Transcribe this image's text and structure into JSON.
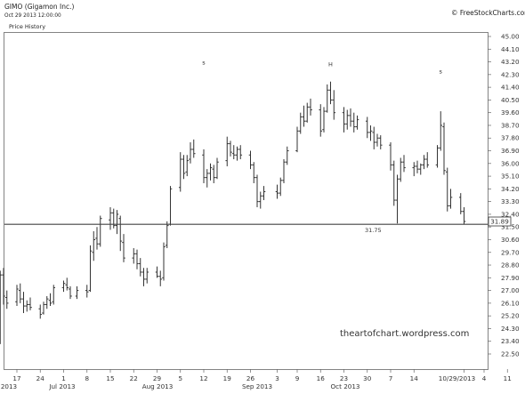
{
  "header": {
    "symbol_title": "GIMO (Gigamon Inc.)",
    "date_line": "Oct 29 2013 12:00:00",
    "panel_label": "Price History",
    "copyright": "© FreeStockCharts.com"
  },
  "watermark": "theartofchart.wordpress.com",
  "price_tag": "31.89",
  "support_label": "31.75",
  "annotations": [
    {
      "text": "s",
      "date": "2013-08-12",
      "price": 43.0
    },
    {
      "text": "H",
      "date": "2013-09-19",
      "price": 42.9
    },
    {
      "text": "s",
      "date": "2013-10-22",
      "price": 42.4
    }
  ],
  "colors": {
    "bar": "#333333",
    "support_line": "#444444",
    "frame": "#666666"
  },
  "chart_data": {
    "type": "ohlc",
    "title": "GIMO (Gigamon Inc.)",
    "y_ticks": [
      "45.00",
      "44.10",
      "43.20",
      "42.30",
      "41.40",
      "40.50",
      "39.60",
      "38.70",
      "37.80",
      "36.90",
      "36.00",
      "35.10",
      "34.20",
      "33.30",
      "32.40",
      "31.50",
      "30.60",
      "29.70",
      "28.80",
      "27.90",
      "27.00",
      "26.10",
      "25.20",
      "24.30",
      "23.40",
      "22.50"
    ],
    "ylim": [
      22.0,
      45.5
    ],
    "x_tick_labels": [
      "17",
      "24",
      "1",
      "8",
      "15",
      "22",
      "29",
      "5",
      "12",
      "19",
      "26",
      "3",
      "9",
      "16",
      "23",
      "30",
      "7",
      "14",
      "10/29/2013",
      "4",
      "11"
    ],
    "month_labels": [
      "2013",
      "Jul 2013",
      "Aug 2013",
      "Sep 2013",
      "Oct 2013"
    ],
    "support_level": 31.75,
    "last_price": 31.89,
    "bars": [
      {
        "date": "2013-06-12",
        "open": 24.0,
        "high": 28.4,
        "low": 23.2,
        "close": 28.1
      },
      {
        "date": "2013-06-13",
        "open": 28.1,
        "high": 28.6,
        "low": 26.0,
        "close": 26.6
      },
      {
        "date": "2013-06-14",
        "open": 26.5,
        "high": 27.0,
        "low": 25.7,
        "close": 26.1
      },
      {
        "date": "2013-06-17",
        "open": 26.2,
        "high": 27.4,
        "low": 25.9,
        "close": 27.1
      },
      {
        "date": "2013-06-18",
        "open": 27.0,
        "high": 27.5,
        "low": 26.1,
        "close": 26.4
      },
      {
        "date": "2013-06-19",
        "open": 26.4,
        "high": 26.9,
        "low": 25.4,
        "close": 25.9
      },
      {
        "date": "2013-06-20",
        "open": 25.9,
        "high": 26.3,
        "low": 25.5,
        "close": 26.0
      },
      {
        "date": "2013-06-21",
        "open": 26.0,
        "high": 26.5,
        "low": 25.6,
        "close": 25.8
      },
      {
        "date": "2013-06-24",
        "open": 25.7,
        "high": 26.0,
        "low": 25.0,
        "close": 25.3
      },
      {
        "date": "2013-06-25",
        "open": 25.4,
        "high": 26.2,
        "low": 25.3,
        "close": 26.0
      },
      {
        "date": "2013-06-26",
        "open": 26.0,
        "high": 26.6,
        "low": 25.7,
        "close": 26.4
      },
      {
        "date": "2013-06-27",
        "open": 26.3,
        "high": 26.8,
        "low": 25.9,
        "close": 26.1
      },
      {
        "date": "2013-06-28",
        "open": 26.2,
        "high": 27.4,
        "low": 26.0,
        "close": 27.2
      },
      {
        "date": "2013-07-01",
        "open": 27.2,
        "high": 27.7,
        "low": 26.9,
        "close": 27.5
      },
      {
        "date": "2013-07-02",
        "open": 27.4,
        "high": 27.9,
        "low": 27.0,
        "close": 27.2
      },
      {
        "date": "2013-07-03",
        "open": 27.1,
        "high": 27.3,
        "low": 26.4,
        "close": 26.6
      },
      {
        "date": "2013-07-05",
        "open": 26.6,
        "high": 27.3,
        "low": 26.4,
        "close": 27.0
      },
      {
        "date": "2013-07-08",
        "open": 27.0,
        "high": 27.4,
        "low": 26.5,
        "close": 26.9
      },
      {
        "date": "2013-07-09",
        "open": 27.0,
        "high": 30.2,
        "low": 26.9,
        "close": 29.8
      },
      {
        "date": "2013-07-10",
        "open": 29.7,
        "high": 31.2,
        "low": 29.1,
        "close": 30.6
      },
      {
        "date": "2013-07-11",
        "open": 30.7,
        "high": 31.5,
        "low": 29.9,
        "close": 30.3
      },
      {
        "date": "2013-07-12",
        "open": 30.3,
        "high": 32.3,
        "low": 30.1,
        "close": 32.1
      },
      {
        "date": "2013-07-15",
        "open": 32.0,
        "high": 32.9,
        "low": 31.3,
        "close": 32.5
      },
      {
        "date": "2013-07-16",
        "open": 32.5,
        "high": 32.8,
        "low": 31.4,
        "close": 31.6
      },
      {
        "date": "2013-07-17",
        "open": 31.6,
        "high": 32.7,
        "low": 31.0,
        "close": 32.4
      },
      {
        "date": "2013-07-18",
        "open": 32.1,
        "high": 32.3,
        "low": 29.8,
        "close": 30.5
      },
      {
        "date": "2013-07-19",
        "open": 30.4,
        "high": 31.0,
        "low": 29.0,
        "close": 29.3
      },
      {
        "date": "2013-07-22",
        "open": 29.3,
        "high": 30.0,
        "low": 28.9,
        "close": 29.6
      },
      {
        "date": "2013-07-23",
        "open": 29.6,
        "high": 29.9,
        "low": 28.5,
        "close": 28.9
      },
      {
        "date": "2013-07-24",
        "open": 28.9,
        "high": 29.3,
        "low": 28.0,
        "close": 28.3
      },
      {
        "date": "2013-07-25",
        "open": 28.3,
        "high": 28.6,
        "low": 27.3,
        "close": 27.8
      },
      {
        "date": "2013-07-26",
        "open": 27.8,
        "high": 28.6,
        "low": 27.5,
        "close": 28.3
      },
      {
        "date": "2013-07-29",
        "open": 28.3,
        "high": 28.7,
        "low": 27.9,
        "close": 28.0
      },
      {
        "date": "2013-07-30",
        "open": 28.0,
        "high": 28.4,
        "low": 27.3,
        "close": 27.8
      },
      {
        "date": "2013-07-31",
        "open": 27.9,
        "high": 30.4,
        "low": 27.7,
        "close": 30.1
      },
      {
        "date": "2013-08-01",
        "open": 30.2,
        "high": 31.9,
        "low": 30.0,
        "close": 31.6
      },
      {
        "date": "2013-08-02",
        "open": 31.7,
        "high": 34.4,
        "low": 31.6,
        "close": 34.2
      },
      {
        "date": "2013-08-05",
        "open": 34.3,
        "high": 36.8,
        "low": 34.0,
        "close": 36.3
      },
      {
        "date": "2013-08-06",
        "open": 36.3,
        "high": 36.6,
        "low": 34.9,
        "close": 35.3
      },
      {
        "date": "2013-08-07",
        "open": 35.4,
        "high": 36.6,
        "low": 35.1,
        "close": 36.2
      },
      {
        "date": "2013-08-08",
        "open": 36.3,
        "high": 37.5,
        "low": 36.0,
        "close": 37.0
      },
      {
        "date": "2013-08-09",
        "open": 37.0,
        "high": 37.7,
        "low": 36.4,
        "close": 36.7
      },
      {
        "date": "2013-08-12",
        "open": 36.6,
        "high": 37.0,
        "low": 34.6,
        "close": 35.0
      },
      {
        "date": "2013-08-13",
        "open": 35.0,
        "high": 35.6,
        "low": 34.3,
        "close": 35.3
      },
      {
        "date": "2013-08-14",
        "open": 35.3,
        "high": 36.0,
        "low": 34.8,
        "close": 35.7
      },
      {
        "date": "2013-08-15",
        "open": 35.6,
        "high": 35.9,
        "low": 34.6,
        "close": 35.0
      },
      {
        "date": "2013-08-16",
        "open": 35.0,
        "high": 36.4,
        "low": 34.9,
        "close": 36.1
      },
      {
        "date": "2013-08-19",
        "open": 36.2,
        "high": 37.9,
        "low": 35.8,
        "close": 37.4
      },
      {
        "date": "2013-08-20",
        "open": 37.4,
        "high": 37.6,
        "low": 36.5,
        "close": 36.8
      },
      {
        "date": "2013-08-21",
        "open": 36.7,
        "high": 37.3,
        "low": 36.3,
        "close": 36.6
      },
      {
        "date": "2013-08-22",
        "open": 36.6,
        "high": 37.2,
        "low": 36.2,
        "close": 37.0
      },
      {
        "date": "2013-08-23",
        "open": 37.0,
        "high": 37.3,
        "low": 36.3,
        "close": 36.6
      },
      {
        "date": "2013-08-26",
        "open": 36.6,
        "high": 36.9,
        "low": 35.6,
        "close": 35.9
      },
      {
        "date": "2013-08-27",
        "open": 35.9,
        "high": 36.1,
        "low": 34.6,
        "close": 35.0
      },
      {
        "date": "2013-08-28",
        "open": 35.0,
        "high": 35.2,
        "low": 32.9,
        "close": 33.3
      },
      {
        "date": "2013-08-29",
        "open": 33.3,
        "high": 34.0,
        "low": 32.8,
        "close": 33.7
      },
      {
        "date": "2013-08-30",
        "open": 33.7,
        "high": 34.4,
        "low": 33.4,
        "close": 34.0
      },
      {
        "date": "2013-09-03",
        "open": 34.0,
        "high": 34.5,
        "low": 33.5,
        "close": 33.9
      },
      {
        "date": "2013-09-04",
        "open": 33.9,
        "high": 35.0,
        "low": 33.7,
        "close": 34.8
      },
      {
        "date": "2013-09-05",
        "open": 34.8,
        "high": 36.3,
        "low": 34.6,
        "close": 36.1
      },
      {
        "date": "2013-09-06",
        "open": 36.1,
        "high": 37.2,
        "low": 35.9,
        "close": 36.9
      },
      {
        "date": "2013-09-09",
        "open": 36.9,
        "high": 38.6,
        "low": 36.8,
        "close": 38.3
      },
      {
        "date": "2013-09-10",
        "open": 38.3,
        "high": 39.6,
        "low": 38.1,
        "close": 39.3
      },
      {
        "date": "2013-09-11",
        "open": 39.3,
        "high": 40.1,
        "low": 38.6,
        "close": 39.0
      },
      {
        "date": "2013-09-12",
        "open": 39.0,
        "high": 40.3,
        "low": 38.9,
        "close": 40.0
      },
      {
        "date": "2013-09-13",
        "open": 40.0,
        "high": 40.6,
        "low": 39.4,
        "close": 39.8
      },
      {
        "date": "2013-09-16",
        "open": 39.8,
        "high": 40.2,
        "low": 37.9,
        "close": 38.3
      },
      {
        "date": "2013-09-17",
        "open": 38.4,
        "high": 40.0,
        "low": 38.2,
        "close": 39.7
      },
      {
        "date": "2013-09-18",
        "open": 39.7,
        "high": 41.6,
        "low": 39.6,
        "close": 41.2
      },
      {
        "date": "2013-09-19",
        "open": 41.2,
        "high": 41.8,
        "low": 40.2,
        "close": 40.5
      },
      {
        "date": "2013-09-20",
        "open": 40.5,
        "high": 41.2,
        "low": 39.1,
        "close": 39.6
      },
      {
        "date": "2013-09-23",
        "open": 39.6,
        "high": 40.0,
        "low": 38.2,
        "close": 38.8
      },
      {
        "date": "2013-09-24",
        "open": 38.8,
        "high": 39.8,
        "low": 38.4,
        "close": 39.4
      },
      {
        "date": "2013-09-25",
        "open": 39.4,
        "high": 39.9,
        "low": 38.6,
        "close": 39.0
      },
      {
        "date": "2013-09-26",
        "open": 39.0,
        "high": 39.6,
        "low": 38.2,
        "close": 38.6
      },
      {
        "date": "2013-09-27",
        "open": 38.6,
        "high": 39.4,
        "low": 38.4,
        "close": 39.1
      },
      {
        "date": "2013-09-30",
        "open": 39.0,
        "high": 39.3,
        "low": 37.8,
        "close": 38.2
      },
      {
        "date": "2013-10-01",
        "open": 38.2,
        "high": 38.7,
        "low": 37.6,
        "close": 38.3
      },
      {
        "date": "2013-10-02",
        "open": 38.2,
        "high": 38.6,
        "low": 37.0,
        "close": 37.5
      },
      {
        "date": "2013-10-03",
        "open": 37.5,
        "high": 38.1,
        "low": 37.2,
        "close": 37.8
      },
      {
        "date": "2013-10-04",
        "open": 37.8,
        "high": 38.0,
        "low": 37.0,
        "close": 37.3
      },
      {
        "date": "2013-10-07",
        "open": 37.3,
        "high": 37.5,
        "low": 35.5,
        "close": 35.9
      },
      {
        "date": "2013-10-08",
        "open": 35.9,
        "high": 36.2,
        "low": 33.0,
        "close": 33.4
      },
      {
        "date": "2013-10-09",
        "open": 33.4,
        "high": 35.2,
        "low": 31.75,
        "close": 34.9
      },
      {
        "date": "2013-10-10",
        "open": 34.9,
        "high": 36.4,
        "low": 34.7,
        "close": 36.1
      },
      {
        "date": "2013-10-11",
        "open": 36.1,
        "high": 36.6,
        "low": 35.4,
        "close": 35.7
      },
      {
        "date": "2013-10-14",
        "open": 35.7,
        "high": 36.1,
        "low": 35.1,
        "close": 35.8
      },
      {
        "date": "2013-10-15",
        "open": 35.8,
        "high": 36.2,
        "low": 35.3,
        "close": 35.6
      },
      {
        "date": "2013-10-16",
        "open": 35.6,
        "high": 36.0,
        "low": 35.2,
        "close": 35.9
      },
      {
        "date": "2013-10-17",
        "open": 35.9,
        "high": 36.6,
        "low": 35.6,
        "close": 36.3
      },
      {
        "date": "2013-10-18",
        "open": 36.3,
        "high": 36.8,
        "low": 35.7,
        "close": 35.9
      },
      {
        "date": "2013-10-21",
        "open": 35.9,
        "high": 37.3,
        "low": 35.7,
        "close": 37.1
      },
      {
        "date": "2013-10-22",
        "open": 37.1,
        "high": 39.7,
        "low": 36.9,
        "close": 38.7
      },
      {
        "date": "2013-10-23",
        "open": 38.6,
        "high": 38.9,
        "low": 35.2,
        "close": 35.5
      },
      {
        "date": "2013-10-24",
        "open": 35.4,
        "high": 35.7,
        "low": 32.6,
        "close": 33.0
      },
      {
        "date": "2013-10-25",
        "open": 33.0,
        "high": 34.2,
        "low": 32.8,
        "close": 33.6
      },
      {
        "date": "2013-10-28",
        "open": 33.6,
        "high": 33.9,
        "low": 32.4,
        "close": 32.6
      },
      {
        "date": "2013-10-29",
        "open": 32.6,
        "high": 32.9,
        "low": 31.7,
        "close": 31.89
      }
    ]
  }
}
